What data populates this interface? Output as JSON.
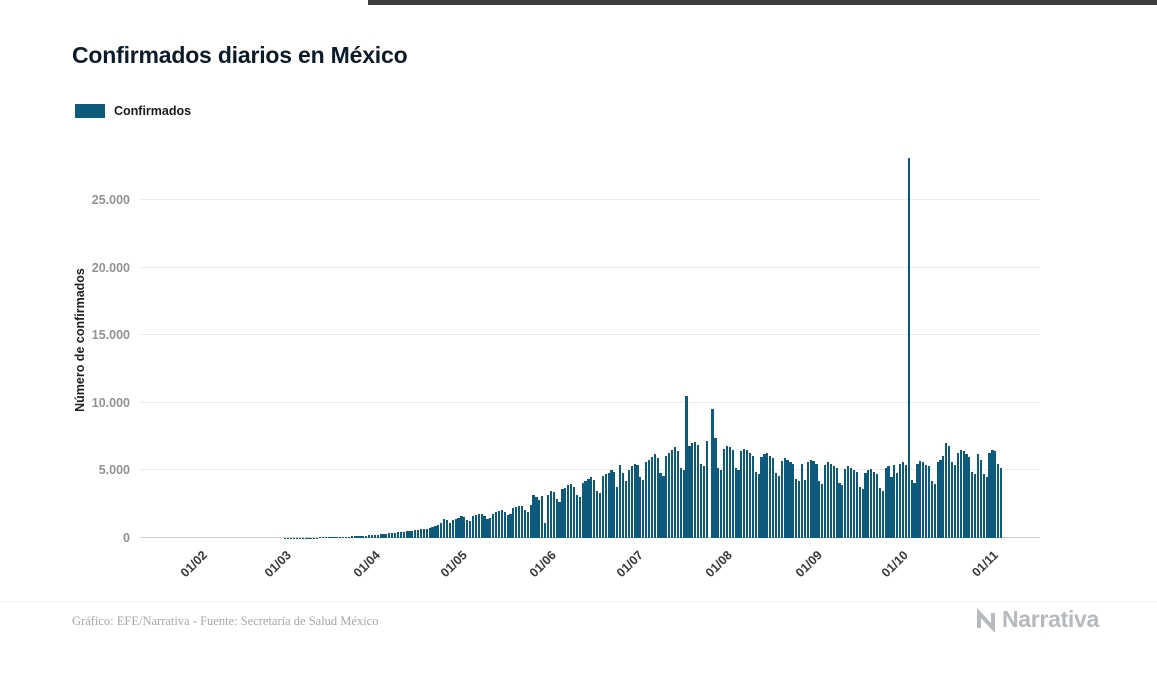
{
  "page": {
    "title": "Confirmados diarios en México",
    "footer_credit": "Gráfico: EFE/Narrativa - Fuente: Secretaría de Salud México",
    "brand": "Narrativa"
  },
  "colors": {
    "bar": "#0e5a7c",
    "brand_gray": "#b6babe"
  },
  "chart_data": {
    "type": "bar",
    "title": "Confirmados diarios en México",
    "xlabel": "",
    "ylabel": "Número de confirmados",
    "ylim": [
      0,
      29000
    ],
    "grid": "horizontal",
    "legend_position": "top-left",
    "yticks": [
      0,
      5000,
      10000,
      15000,
      20000,
      25000
    ],
    "ytick_labels": [
      "0",
      "5.000",
      "10.000",
      "15.000",
      "20.000",
      "25.000"
    ],
    "x_start_date": "16/01/2020",
    "x_frequency": "daily",
    "x_tick_labels": [
      "01/02",
      "01/03",
      "01/04",
      "01/05",
      "01/06",
      "01/07",
      "01/08",
      "01/09",
      "01/10",
      "01/11"
    ],
    "x_tick_indices": [
      16,
      45,
      76,
      106,
      137,
      167,
      198,
      229,
      259,
      290
    ],
    "series": [
      {
        "name": "Confirmados",
        "color": "#0e5a7c",
        "values": [
          0,
          0,
          0,
          0,
          0,
          0,
          0,
          0,
          0,
          0,
          0,
          0,
          0,
          0,
          0,
          0,
          0,
          0,
          0,
          0,
          0,
          0,
          0,
          0,
          0,
          0,
          0,
          0,
          0,
          0,
          0,
          0,
          0,
          0,
          0,
          0,
          0,
          0,
          0,
          0,
          0,
          0,
          1,
          1,
          2,
          3,
          2,
          4,
          5,
          4,
          6,
          8,
          7,
          10,
          12,
          15,
          18,
          21,
          20,
          26,
          32,
          38,
          42,
          48,
          52,
          60,
          55,
          72,
          82,
          92,
          101,
          112,
          108,
          121,
          132,
          145,
          150,
          165,
          180,
          200,
          220,
          210,
          250,
          270,
          300,
          320,
          350,
          340,
          380,
          410,
          440,
          470,
          500,
          490,
          540,
          580,
          620,
          660,
          700,
          690,
          760,
          820,
          880,
          950,
          1100,
          1425,
          1300,
          1100,
          1350,
          1400,
          1500,
          1600,
          1550,
          1300,
          1250,
          1600,
          1700,
          1750,
          1800,
          1650,
          1400,
          1500,
          1800,
          1900,
          2000,
          2100,
          1950,
          1700,
          1750,
          2200,
          2300,
          2400,
          2350,
          2100,
          1900,
          2450,
          3150,
          3000,
          2800,
          3100,
          1100,
          3200,
          3500,
          3400,
          2900,
          2700,
          3600,
          3700,
          3900,
          4000,
          3800,
          3200,
          3000,
          4100,
          4200,
          4400,
          4500,
          4300,
          3500,
          3300,
          4600,
          4700,
          4800,
          5000,
          4900,
          3800,
          5430,
          4800,
          4200,
          5000,
          5300,
          5500,
          5400,
          4500,
          4300,
          5600,
          5800,
          6000,
          6200,
          5900,
          4800,
          4600,
          6100,
          6300,
          6500,
          6700,
          6400,
          5200,
          5000,
          10480,
          6800,
          7000,
          7100,
          6900,
          5500,
          5300,
          7200,
          0,
          9556,
          7400,
          5200,
          5000,
          6600,
          6800,
          6700,
          6500,
          5200,
          5000,
          6400,
          6600,
          6500,
          6300,
          6100,
          4900,
          4700,
          6000,
          6200,
          6300,
          6100,
          5900,
          4800,
          4600,
          5700,
          5900,
          5800,
          5600,
          5500,
          4400,
          4200,
          5500,
          4300,
          5600,
          5800,
          5700,
          5500,
          4200,
          4000,
          5400,
          5600,
          5500,
          5300,
          5200,
          4100,
          3900,
          5100,
          5300,
          5200,
          5000,
          4900,
          3800,
          3600,
          4800,
          5000,
          5100,
          4900,
          4700,
          3700,
          3500,
          5200,
          5300,
          4500,
          5400,
          4800,
          5500,
          5600,
          5400,
          28115,
          4300,
          4100,
          5500,
          5700,
          5600,
          5400,
          5300,
          4200,
          4000,
          5600,
          5800,
          6100,
          7000,
          6800,
          5600,
          5400,
          6300,
          6500,
          6400,
          6200,
          6000,
          4900,
          4700,
          6200,
          5800,
          4700,
          4500,
          6300,
          6500,
          6400,
          5500,
          5200
        ]
      }
    ]
  }
}
